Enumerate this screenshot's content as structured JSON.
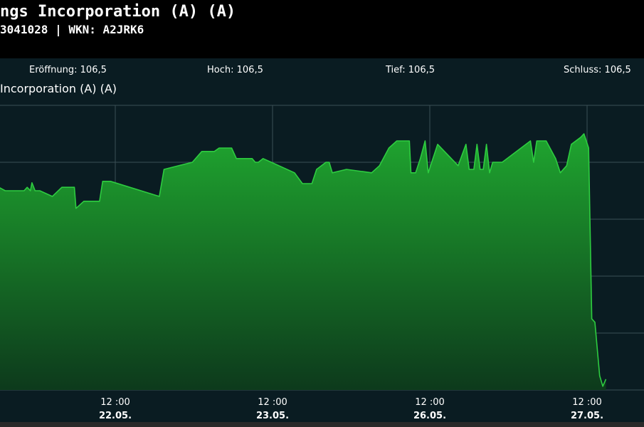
{
  "header": {
    "title": "ngs Incorporation (A) (A)",
    "subtitle": "3041028  | WKN: A2JRK6"
  },
  "ohlc": {
    "open": "Eröffnung: 106,5",
    "high": "Hoch: 106,5",
    "low": "Tief: 106,5",
    "close": "Schluss: 106,5"
  },
  "chart_data": {
    "type": "area",
    "title": "Incorporation (A) (A)",
    "xlabel": "",
    "ylabel": "",
    "grid": true,
    "line_color": "#2ecc40",
    "fill_color": "#1a9a2a",
    "x_ticks": [
      {
        "time": "12 :00",
        "date": "22.05."
      },
      {
        "time": "12 :00",
        "date": "23.05."
      },
      {
        "time": "12 :00",
        "date": "26.05."
      },
      {
        "time": "12 :00",
        "date": "27.05."
      }
    ],
    "x_range": [
      -0.74,
      3.36
    ],
    "ylim": [
      0,
      100
    ],
    "points": [
      [
        -0.74,
        71.2
      ],
      [
        -0.7,
        70.0
      ],
      [
        -0.58,
        70.0
      ],
      [
        -0.56,
        71.2
      ],
      [
        -0.54,
        70.0
      ],
      [
        -0.53,
        72.8
      ],
      [
        -0.51,
        70.0
      ],
      [
        -0.48,
        70.0
      ],
      [
        -0.4,
        68.0
      ],
      [
        -0.34,
        71.2
      ],
      [
        -0.26,
        71.2
      ],
      [
        -0.25,
        63.8
      ],
      [
        -0.2,
        66.3
      ],
      [
        -0.1,
        66.3
      ],
      [
        -0.08,
        73.3
      ],
      [
        -0.03,
        73.3
      ],
      [
        0.28,
        68.0
      ],
      [
        0.31,
        77.5
      ],
      [
        0.49,
        80.0
      ],
      [
        0.55,
        83.8
      ],
      [
        0.63,
        83.8
      ],
      [
        0.66,
        85.0
      ],
      [
        0.74,
        85.0
      ],
      [
        0.77,
        81.3
      ],
      [
        0.87,
        81.3
      ],
      [
        0.89,
        80.0
      ],
      [
        0.91,
        80.0
      ],
      [
        0.94,
        81.3
      ],
      [
        1.14,
        76.3
      ],
      [
        1.19,
        72.5
      ],
      [
        1.25,
        72.5
      ],
      [
        1.28,
        77.5
      ],
      [
        1.34,
        80.0
      ],
      [
        1.36,
        80.0
      ],
      [
        1.38,
        76.3
      ],
      [
        1.47,
        77.5
      ],
      [
        1.63,
        76.3
      ],
      [
        1.68,
        78.8
      ],
      [
        1.74,
        85.0
      ],
      [
        1.79,
        87.5
      ],
      [
        1.87,
        87.5
      ],
      [
        1.88,
        76.3
      ],
      [
        1.91,
        76.3
      ],
      [
        1.94,
        81.3
      ],
      [
        1.97,
        87.5
      ],
      [
        1.99,
        76.3
      ],
      [
        2.05,
        86.3
      ],
      [
        2.18,
        78.8
      ],
      [
        2.23,
        86.3
      ],
      [
        2.25,
        77.5
      ],
      [
        2.28,
        77.5
      ],
      [
        2.3,
        86.3
      ],
      [
        2.32,
        77.5
      ],
      [
        2.34,
        77.5
      ],
      [
        2.36,
        86.3
      ],
      [
        2.38,
        76.3
      ],
      [
        2.4,
        80.0
      ],
      [
        2.46,
        80.0
      ],
      [
        2.64,
        87.5
      ],
      [
        2.66,
        80.0
      ],
      [
        2.68,
        87.5
      ],
      [
        2.74,
        87.5
      ],
      [
        2.8,
        81.3
      ],
      [
        2.83,
        76.3
      ],
      [
        2.87,
        78.8
      ],
      [
        2.9,
        86.3
      ],
      [
        2.96,
        88.8
      ],
      [
        2.98,
        90.0
      ],
      [
        3.01,
        85.0
      ],
      [
        3.03,
        25.0
      ],
      [
        3.05,
        23.8
      ],
      [
        3.08,
        5.0
      ],
      [
        3.1,
        1.3
      ],
      [
        3.12,
        3.8
      ]
    ]
  }
}
